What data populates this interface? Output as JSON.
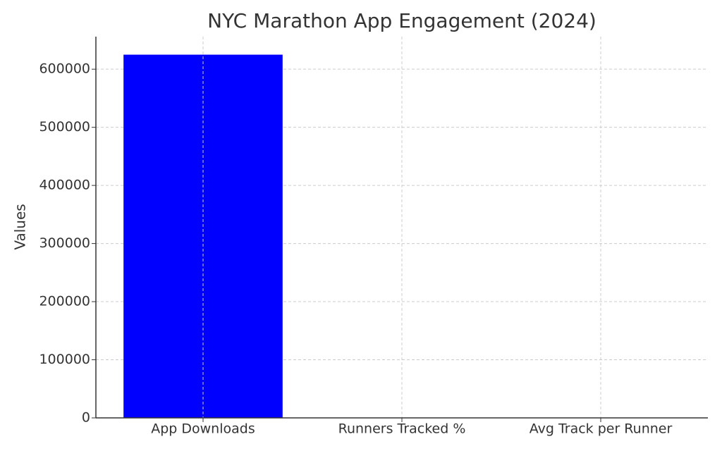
{
  "chart_data": {
    "type": "bar",
    "title": "NYC Marathon App Engagement (2024)",
    "y_label": "Values",
    "categories": [
      "App Downloads",
      "Runners Tracked %",
      "Avg Track per Runner"
    ],
    "values": [
      625000,
      0,
      0
    ],
    "color": "#0000ff",
    "ylim": [
      0,
      656000
    ],
    "yticks": [
      0,
      100000,
      200000,
      300000,
      400000,
      500000,
      600000
    ],
    "grid": true
  }
}
